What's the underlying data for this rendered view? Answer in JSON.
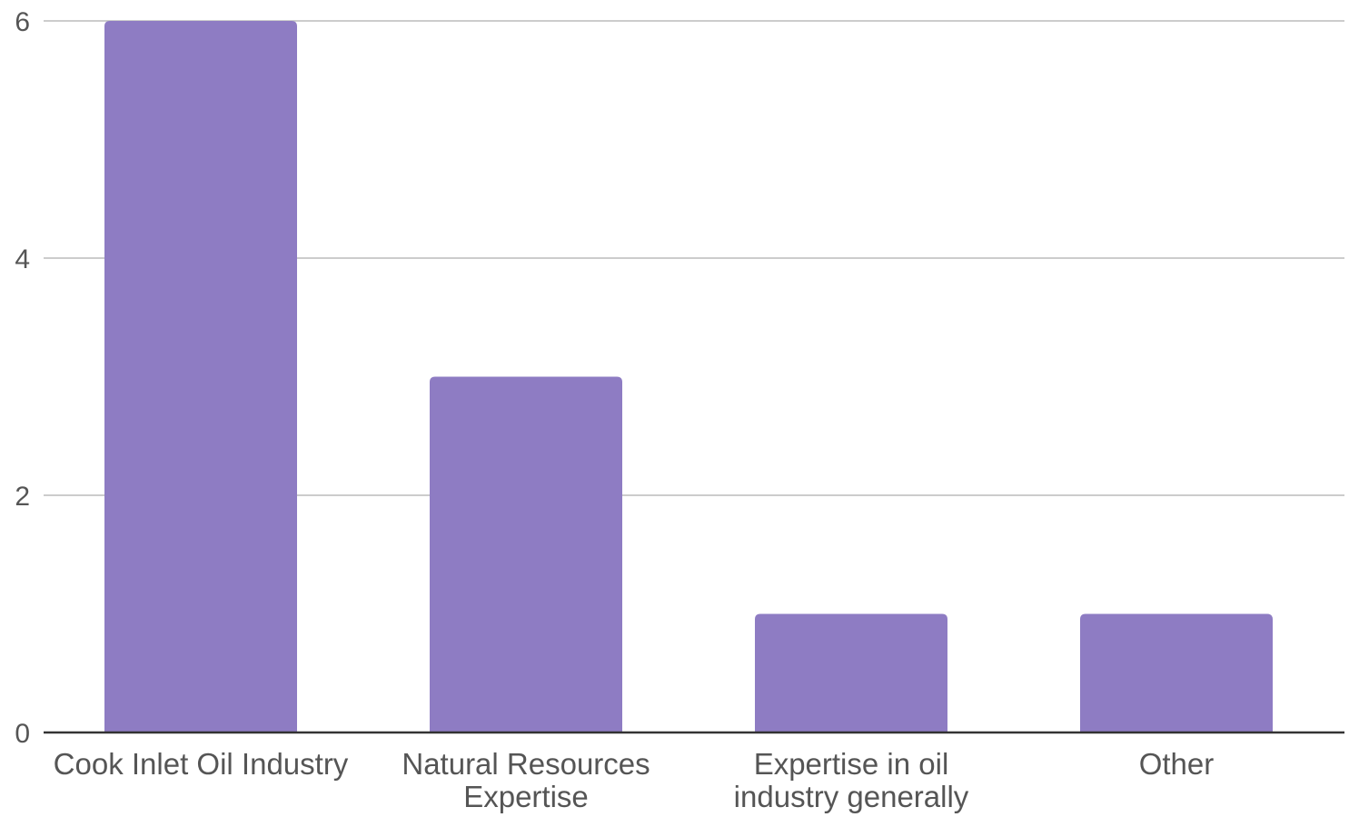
{
  "chart_data": {
    "type": "bar",
    "title": "",
    "xlabel": "",
    "ylabel": "",
    "categories": [
      "Cook Inlet Oil Industry",
      "Natural Resources Expertise",
      "Expertise in oil industry generally",
      "Other"
    ],
    "category_label_lines": [
      [
        "Cook Inlet Oil Industry"
      ],
      [
        "Natural Resources",
        "Expertise"
      ],
      [
        "Expertise in oil",
        "industry generally"
      ],
      [
        "Other"
      ]
    ],
    "values": [
      6,
      3,
      1,
      1
    ],
    "ylim": [
      0,
      6
    ],
    "yticks": [
      0,
      2,
      4,
      6
    ],
    "grid": true,
    "legend": "none",
    "bar_color": "#8e7cc3"
  }
}
